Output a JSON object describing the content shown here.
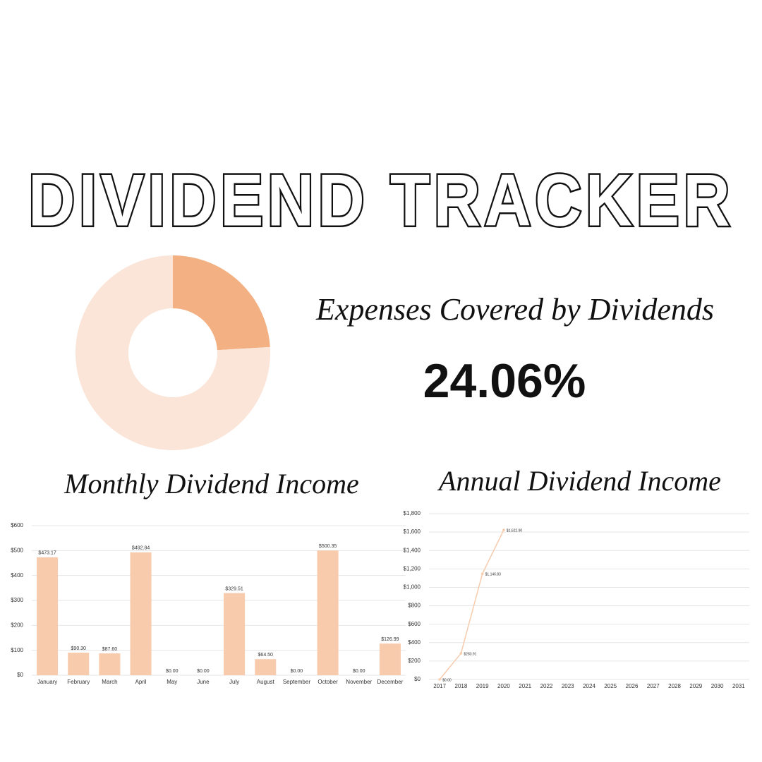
{
  "title": "DIVIDEND TRACKER",
  "chart_data": [
    {
      "type": "pie",
      "title": "Expenses Covered by Dividends",
      "values": [
        24.06,
        75.94
      ],
      "value_labels": [
        "24.06%",
        null
      ],
      "colors": [
        "#f3b083",
        "#fbe5d8"
      ]
    },
    {
      "type": "bar",
      "title": "Monthly Dividend Income",
      "categories": [
        "January",
        "February",
        "March",
        "April",
        "May",
        "June",
        "July",
        "August",
        "September",
        "October",
        "November",
        "December"
      ],
      "values": [
        473.17,
        90.3,
        87.6,
        492.84,
        0,
        0,
        329.51,
        64.5,
        0,
        500.35,
        0,
        126.99
      ],
      "value_labels": [
        "$473.17",
        "$90.30",
        "$87.60",
        "$492.84",
        "$0.00",
        "$0.00",
        "$329.51",
        "$64.50",
        "$0.00",
        "$500.35",
        "$0.00",
        "$126.99"
      ],
      "color": "#f8cbad",
      "ylim": [
        0,
        600
      ],
      "yticks": [
        {
          "value": 0,
          "label": "$0"
        },
        {
          "value": 100,
          "label": "$100"
        },
        {
          "value": 200,
          "label": "$200"
        },
        {
          "value": 300,
          "label": "$300"
        },
        {
          "value": 400,
          "label": "$400"
        },
        {
          "value": 500,
          "label": "$500"
        },
        {
          "value": 600,
          "label": "$600"
        }
      ],
      "grid": true
    },
    {
      "type": "line",
      "title": "Annual Dividend Income",
      "categories": [
        "2017",
        "2018",
        "2019",
        "2020",
        "2021",
        "2022",
        "2023",
        "2024",
        "2025",
        "2026",
        "2027",
        "2028",
        "2029",
        "2030",
        "2031"
      ],
      "values": [
        0,
        283.91,
        1146.83,
        1622.9,
        null,
        null,
        null,
        null,
        null,
        null,
        null,
        null,
        null,
        null,
        null
      ],
      "value_labels": [
        "$0.00",
        "$283.91",
        "$1,146.83",
        "$1,622.90",
        null,
        null,
        null,
        null,
        null,
        null,
        null,
        null,
        null,
        null,
        null
      ],
      "color": "#f8cbad",
      "ylim": [
        0,
        1800
      ],
      "yticks": [
        {
          "value": 0,
          "label": "$0"
        },
        {
          "value": 200,
          "label": "$200"
        },
        {
          "value": 400,
          "label": "$400"
        },
        {
          "value": 600,
          "label": "$600"
        },
        {
          "value": 800,
          "label": "$800"
        },
        {
          "value": 1000,
          "label": "$1,000"
        },
        {
          "value": 1200,
          "label": "$1,200"
        },
        {
          "value": 1400,
          "label": "$1,400"
        },
        {
          "value": 1600,
          "label": "$1,600"
        },
        {
          "value": 1800,
          "label": "$1,800"
        }
      ],
      "grid": true
    }
  ]
}
